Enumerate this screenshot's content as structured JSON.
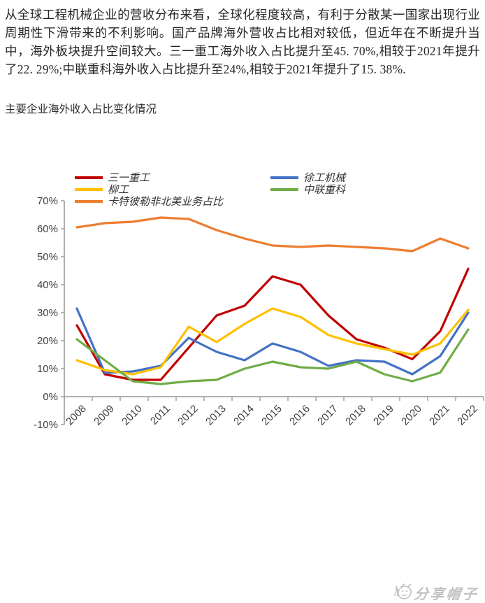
{
  "article": {
    "paragraph": "从全球工程机械企业的营收分布来看，全球化程度较高，有利于分散某一国家出现行业周期性下滑带来的不利影响。国产品牌海外营收占比相对较低，但近年在不断提升当中，海外板块提升空间较大。三一重工海外收入占比提升至45. 70%,相较于2021年提升了22. 29%;中联重科海外收入占比提升至24%,相较于2021年提升了15. 38%.",
    "chart_title": "主要企业海外收入占比变化情况"
  },
  "chart_data": {
    "type": "line",
    "title": "主要企业海外收入占比变化情况",
    "categories": [
      "2008",
      "2009",
      "2010",
      "2011",
      "2012",
      "2013",
      "2014",
      "2015",
      "2016",
      "2017",
      "2018",
      "2019",
      "2020",
      "2021",
      "2022"
    ],
    "series": [
      {
        "name": "三一重工",
        "color": "#C00000",
        "values": [
          25.5,
          8,
          6,
          6,
          17.5,
          29,
          32.5,
          43,
          40,
          29,
          20.5,
          17.5,
          13.4,
          23.4,
          45.7
        ]
      },
      {
        "name": "徐工机械",
        "color": "#4472C4",
        "values": [
          31.5,
          8.5,
          9,
          11,
          21,
          16,
          13,
          19,
          16,
          11,
          13,
          12.5,
          8,
          14.5,
          30
        ]
      },
      {
        "name": "柳工",
        "color": "#FFC000",
        "values": [
          13,
          9.5,
          8,
          10.5,
          25,
          19.5,
          26,
          31.5,
          28.5,
          22,
          19,
          17,
          15,
          19,
          31
        ]
      },
      {
        "name": "中联重科",
        "color": "#70AD47",
        "values": [
          20.5,
          13,
          5.5,
          4.5,
          5.5,
          6,
          10,
          12.5,
          10.5,
          10,
          12.5,
          8,
          5.5,
          8.6,
          24
        ]
      },
      {
        "name": "卡特彼勒非北美业务占比",
        "color": "#ED7D31",
        "values": [
          60.5,
          62,
          62.5,
          64,
          63.5,
          59.5,
          56.5,
          54,
          53.5,
          54,
          53.5,
          53,
          52,
          56.5,
          53
        ]
      }
    ],
    "ylim": [
      -10,
      70
    ],
    "y_tick_step": 10,
    "y_tick_labels": [
      "70%",
      "60%",
      "50%",
      "40%",
      "30%",
      "20%",
      "10%",
      "0%",
      "-10%"
    ],
    "grid": false,
    "legend_position": "top",
    "axis_color": "#A6A6A6",
    "axis_text_color": "#404040"
  },
  "watermark": {
    "text": "分享帽子",
    "icon": "smiley-face-icon",
    "color": "#8F8F8F"
  }
}
